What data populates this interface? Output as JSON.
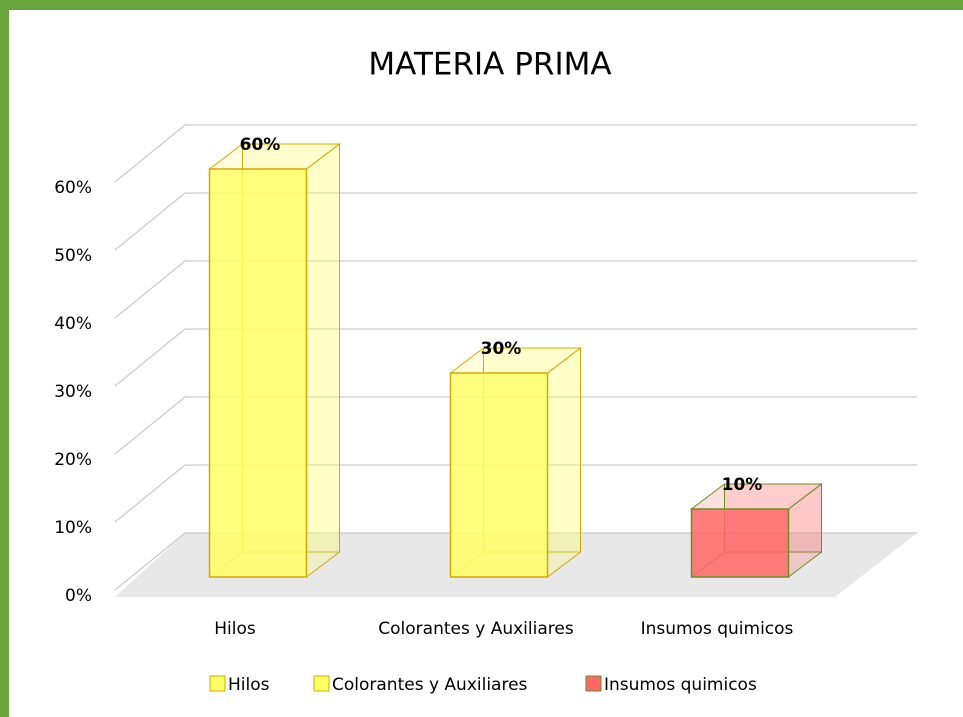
{
  "chart_data": {
    "type": "bar3d",
    "title": "MATERIA PRIMA",
    "categories": [
      "Hilos",
      "Colorantes y Auxiliares",
      "Insumos quimicos"
    ],
    "values": [
      60,
      30,
      10
    ],
    "value_labels": [
      "60%",
      "30%",
      "10%"
    ],
    "colors": [
      "#ffff66",
      "#ffff66",
      "#ff6666"
    ],
    "ylim": [
      0,
      70
    ],
    "yticks": [
      {
        "value": 0,
        "label": "0%"
      },
      {
        "value": 10,
        "label": "10%"
      },
      {
        "value": 20,
        "label": "20%"
      },
      {
        "value": 30,
        "label": "30%"
      },
      {
        "value": 40,
        "label": "40%"
      },
      {
        "value": 50,
        "label": "50%"
      },
      {
        "value": 60,
        "label": "60%"
      }
    ],
    "grid": true,
    "legend": "bottom"
  }
}
